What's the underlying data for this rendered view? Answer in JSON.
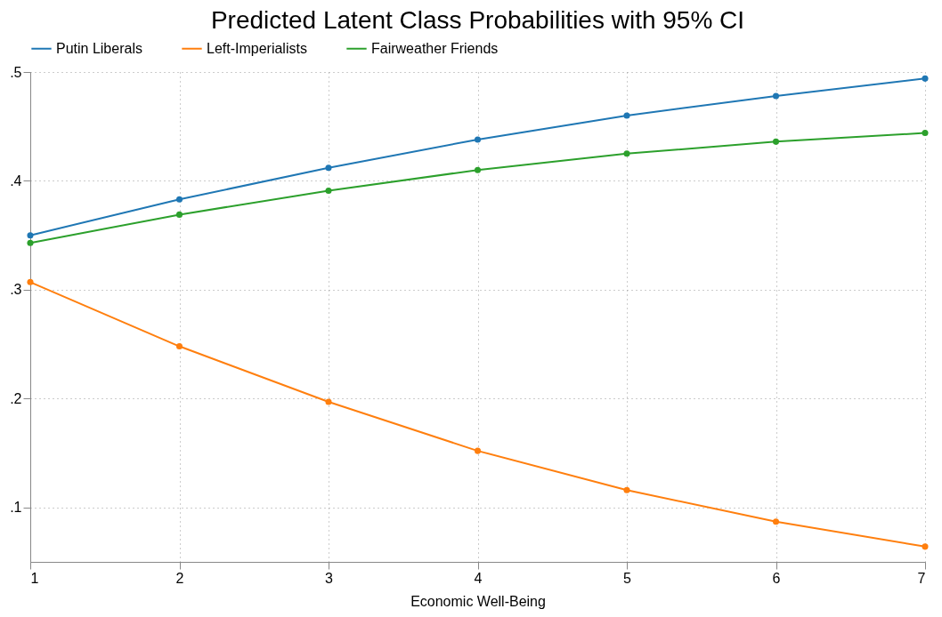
{
  "chart_data": {
    "type": "line",
    "title": "Predicted Latent Class Probabilities with 95% CI",
    "xlabel": "Economic Well-Being",
    "x": [
      1,
      2,
      3,
      4,
      5,
      6,
      7
    ],
    "series": [
      {
        "name": "Putin Liberals",
        "color": "#1f77b4",
        "values": [
          0.35,
          0.383,
          0.412,
          0.438,
          0.46,
          0.478,
          0.494
        ]
      },
      {
        "name": "Left-Imperialists",
        "color": "#ff7f0e",
        "values": [
          0.307,
          0.248,
          0.197,
          0.152,
          0.116,
          0.087,
          0.064
        ]
      },
      {
        "name": "Fairweather Friends",
        "color": "#2ca02c",
        "values": [
          0.343,
          0.369,
          0.391,
          0.41,
          0.425,
          0.436,
          0.444
        ]
      }
    ],
    "xlim": [
      1,
      7
    ],
    "xticks": [
      1,
      2,
      3,
      4,
      5,
      6,
      7
    ],
    "ylim": [
      0.05,
      0.5
    ],
    "yticks": [
      {
        "value": 0.1,
        "label": ".1"
      },
      {
        "value": 0.2,
        "label": ".2"
      },
      {
        "value": 0.3,
        "label": ".3"
      },
      {
        "value": 0.4,
        "label": ".4"
      },
      {
        "value": 0.5,
        "label": ".5"
      }
    ],
    "grid": true,
    "legend": "top",
    "marker": "circle",
    "line_style": "solid"
  }
}
